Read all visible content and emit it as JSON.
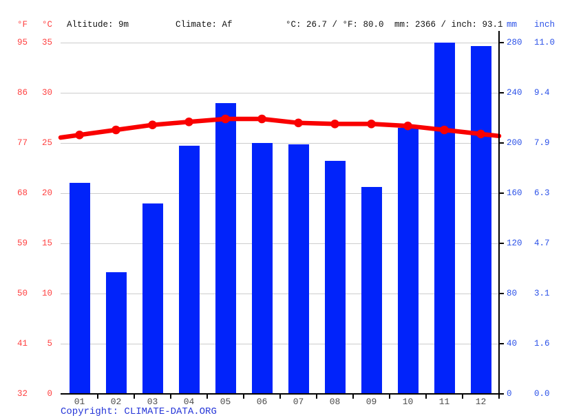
{
  "header": {
    "f_unit": "°F",
    "c_unit": "°C",
    "altitude": "Altitude: 9m",
    "climate": "Climate: Af",
    "avg_temp": "°C: 26.7 / °F: 80.0",
    "total_precip": "mm: 2366 / inch: 93.1",
    "mm_unit": "mm",
    "inch_unit": "inch"
  },
  "axes": {
    "fahrenheit": [
      "95",
      "86",
      "77",
      "68",
      "59",
      "50",
      "41",
      "32"
    ],
    "celsius": [
      "35",
      "30",
      "25",
      "20",
      "15",
      "10",
      "5",
      "0"
    ],
    "mm": [
      "280",
      "240",
      "200",
      "160",
      "120",
      "80",
      "40",
      "0"
    ],
    "inch": [
      "11.0",
      "9.4",
      "7.9",
      "6.3",
      "4.7",
      "3.1",
      "1.6",
      "0.0"
    ]
  },
  "chart_data": {
    "type": "bar",
    "subtype": "climate combo: precipitation bars + temperature line",
    "title": "",
    "categories": [
      "01",
      "02",
      "03",
      "04",
      "05",
      "06",
      "07",
      "08",
      "09",
      "10",
      "11",
      "12"
    ],
    "series": [
      {
        "name": "Precipitation",
        "type": "bar",
        "unit": "mm",
        "axis": "right",
        "values": [
          168,
          97,
          152,
          198,
          232,
          200,
          199,
          186,
          165,
          212,
          280,
          277
        ]
      },
      {
        "name": "Temperature",
        "type": "line",
        "unit": "°C",
        "axis": "left",
        "values": [
          25.8,
          26.3,
          26.8,
          27.1,
          27.4,
          27.4,
          27.0,
          26.9,
          26.9,
          26.7,
          26.3,
          25.9
        ]
      }
    ],
    "left_axis": {
      "unit_c": "°C",
      "unit_f": "°F",
      "min": 0,
      "max": 35,
      "ticks_c": [
        35,
        30,
        25,
        20,
        15,
        10,
        5,
        0
      ],
      "ticks_f": [
        95,
        86,
        77,
        68,
        59,
        50,
        41,
        32
      ]
    },
    "right_axis": {
      "unit_mm": "mm",
      "unit_inch": "inch",
      "min": 0,
      "max": 280,
      "ticks_mm": [
        280,
        240,
        200,
        160,
        120,
        80,
        40,
        0
      ],
      "ticks_inch": [
        11.0,
        9.4,
        7.9,
        6.3,
        4.7,
        3.1,
        1.6,
        0.0
      ]
    },
    "grid": true,
    "legend": "none"
  },
  "footer": {
    "copyright_prefix": "Copyright: ",
    "link_label": "CLIMATE-DATA.ORG"
  },
  "colors": {
    "bar_blue": "#0123FA",
    "line_red": "#F90000",
    "red_text": "#FF4040",
    "blue_text": "#2B51E8",
    "copyright_blue": "#2636D8",
    "header_text": "#111111",
    "month_text": "#4A4A4A",
    "gridline": "#CCCCCC",
    "axis_black": "#000000",
    "background": "#FFFFFF"
  }
}
